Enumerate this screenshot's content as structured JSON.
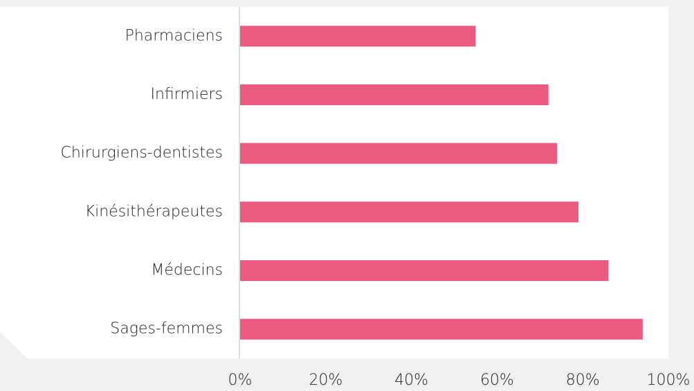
{
  "chart_data": {
    "type": "bar",
    "orientation": "horizontal",
    "categories": [
      "Pharmaciens",
      "Infirmiers",
      "Chirurgiens-dentistes",
      "Kinésithérapeutes",
      "Médecins",
      "Sages-femmes"
    ],
    "values": [
      55,
      72,
      74,
      79,
      86,
      94
    ],
    "color": "#ec5a80",
    "xlim": [
      0,
      100
    ],
    "xticks": [
      {
        "value": 0,
        "label": "0%"
      },
      {
        "value": 20,
        "label": "20%"
      },
      {
        "value": 40,
        "label": "40%"
      },
      {
        "value": 60,
        "label": "60%"
      },
      {
        "value": 80,
        "label": "80%"
      },
      {
        "value": 100,
        "label": "100%"
      }
    ],
    "grid": false
  }
}
